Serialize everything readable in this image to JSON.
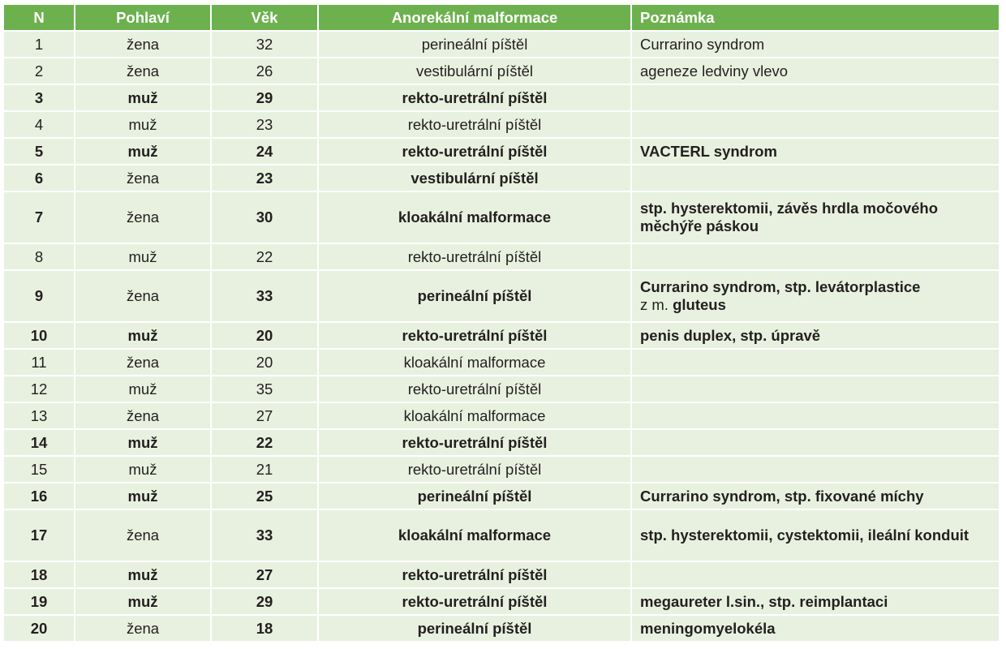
{
  "table": {
    "headers": {
      "n": "N",
      "sex": "Pohlaví",
      "age": "Věk",
      "malformation": "Anorekální malformace",
      "note": "Poznámka"
    },
    "rows": [
      {
        "n": "1",
        "sex": "žena",
        "age": "32",
        "malformation": "perineální píštěl",
        "note": "Currarino syndrom",
        "bold": false
      },
      {
        "n": "2",
        "sex": "žena",
        "age": "26",
        "malformation": "vestibulární píštěl",
        "note": "ageneze ledviny vlevo",
        "bold": false
      },
      {
        "n": "3",
        "sex": "muž",
        "age": "29",
        "malformation": "rekto-uretrální píštěl",
        "note": "",
        "bold": true
      },
      {
        "n": "4",
        "sex": "muž",
        "age": "23",
        "malformation": "rekto-uretrální píštěl",
        "note": "",
        "bold": false
      },
      {
        "n": "5",
        "sex": "muž",
        "age": "24",
        "malformation": "rekto-uretrální píštěl",
        "note": "VACTERL syndrom",
        "bold": true
      },
      {
        "n": "6",
        "sex": "žena",
        "age": "23",
        "malformation": "vestibulární píštěl",
        "note": "",
        "bold": true,
        "sex_normal": true
      },
      {
        "n": "7",
        "sex": "žena",
        "age": "30",
        "malformation": "kloakální malformace",
        "note": "stp. hysterektomii, závěs hrdla močového měchýře páskou",
        "bold": true,
        "sex_normal": true,
        "tall": true
      },
      {
        "n": "8",
        "sex": "muž",
        "age": "22",
        "malformation": "rekto-uretrální píštěl",
        "note": "",
        "bold": false
      },
      {
        "n": "9",
        "sex": "žena",
        "age": "33",
        "malformation": "perineální píštěl",
        "note_a": "Currarino syndrom, stp. levátorplastice",
        "note_b": "z m.",
        "note_c": "gluteus",
        "bold": true,
        "sex_normal": true,
        "tall": true
      },
      {
        "n": "10",
        "sex": "muž",
        "age": "20",
        "malformation": "rekto-uretrální píštěl",
        "note": "penis duplex, stp. úpravě",
        "bold": true
      },
      {
        "n": "11",
        "sex": "žena",
        "age": "20",
        "malformation": "kloakální malformace",
        "note": "",
        "bold": false
      },
      {
        "n": "12",
        "sex": "muž",
        "age": "35",
        "malformation": "rekto-uretrální píštěl",
        "note": "",
        "bold": false
      },
      {
        "n": "13",
        "sex": "žena",
        "age": "27",
        "malformation": "kloakální malformace",
        "note": "",
        "bold": false
      },
      {
        "n": "14",
        "sex": "muž",
        "age": "22",
        "malformation": "rekto-uretrální píštěl",
        "note": "",
        "bold": true
      },
      {
        "n": "15",
        "sex": "muž",
        "age": "21",
        "malformation": "rekto-uretrální píštěl",
        "note": "",
        "bold": false
      },
      {
        "n": "16",
        "sex": "muž",
        "age": "25",
        "malformation": "perineální píštěl",
        "note": "Currarino syndrom, stp. fixované míchy",
        "bold": true
      },
      {
        "n": "17",
        "sex": "žena",
        "age": "33",
        "malformation": "kloakální malformace",
        "note": "stp. hysterektomii, cystektomii, ileální konduit",
        "bold": true,
        "sex_normal": true,
        "tall": true
      },
      {
        "n": "18",
        "sex": "muž",
        "age": "27",
        "malformation": "rekto-uretrální píštěl",
        "note": "",
        "bold": true
      },
      {
        "n": "19",
        "sex": "muž",
        "age": "29",
        "malformation": "rekto-uretrální píštěl",
        "note": "megaureter l.sin., stp. reimplantaci",
        "bold": true
      },
      {
        "n": "20",
        "sex": "žena",
        "age": "18",
        "malformation": "perineální píštěl",
        "note": "meningomyelokéla",
        "bold": true,
        "sex_normal": true
      }
    ]
  },
  "colors": {
    "header_bg": "#6db14f",
    "row_bg": "#e8f1df",
    "header_text": "#ffffff",
    "body_text": "#231f20"
  }
}
